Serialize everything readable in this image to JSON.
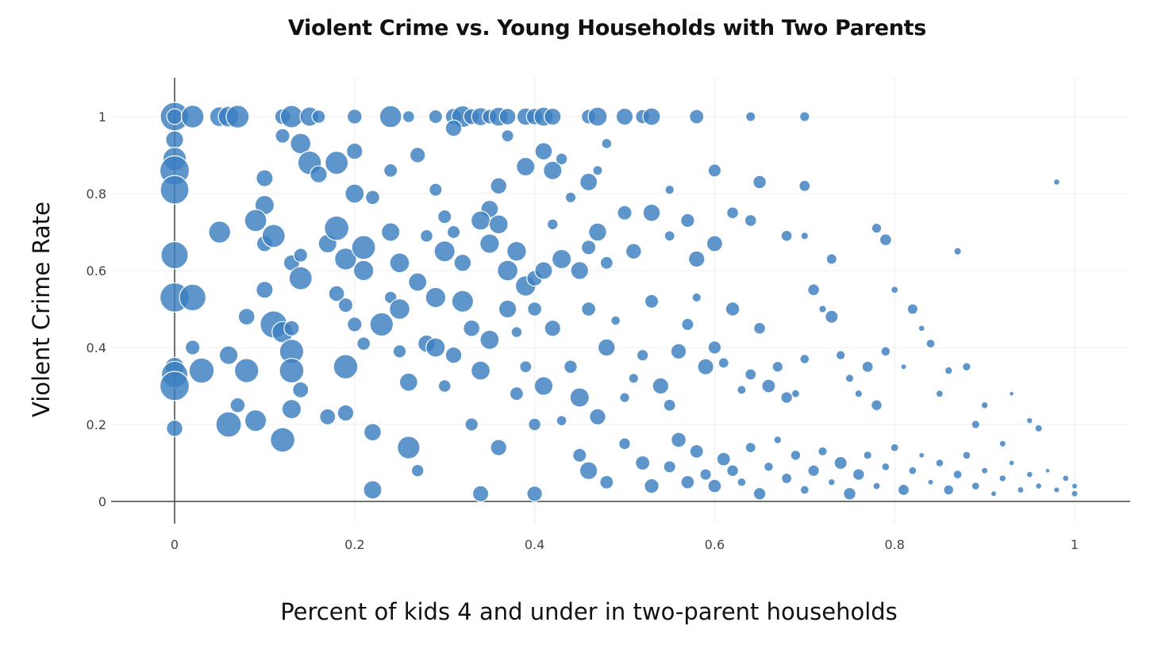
{
  "chart_data": {
    "type": "scatter",
    "title": "Violent Crime vs. Young Households with Two Parents",
    "xlabel": "Percent of kids 4 and under in two-parent households",
    "ylabel": "Violent Crime Rate",
    "xlim": [
      -0.08,
      1.06
    ],
    "ylim": [
      -0.06,
      1.1
    ],
    "xticks": [
      "0",
      "0.2",
      "0.4",
      "0.6",
      "0.8",
      "1"
    ],
    "yticks": [
      "0",
      "0.2",
      "0.4",
      "0.6",
      "0.8",
      "1"
    ],
    "grid": true,
    "legend": "none",
    "marker_color": "#3a7fc1",
    "marker_edge_color": "#ffffff",
    "size_encoding": "bubble size varies by point (larger toward lower x)",
    "series": [
      {
        "points": [
          [
            0,
            1
          ],
          [
            0,
            1
          ],
          [
            0.02,
            1
          ],
          [
            0.05,
            1
          ],
          [
            0.06,
            1
          ],
          [
            0.07,
            1
          ],
          [
            0.12,
            1
          ],
          [
            0.13,
            1
          ],
          [
            0.15,
            1
          ],
          [
            0.16,
            1
          ],
          [
            0.2,
            1
          ],
          [
            0.24,
            1
          ],
          [
            0.26,
            1
          ],
          [
            0.29,
            1
          ],
          [
            0.31,
            1
          ],
          [
            0.32,
            1
          ],
          [
            0.33,
            1
          ],
          [
            0.34,
            1
          ],
          [
            0.35,
            1
          ],
          [
            0.36,
            1
          ],
          [
            0.37,
            1
          ],
          [
            0.39,
            1
          ],
          [
            0.4,
            1
          ],
          [
            0.41,
            1
          ],
          [
            0.42,
            1
          ],
          [
            0.46,
            1
          ],
          [
            0.47,
            1
          ],
          [
            0.5,
            1
          ],
          [
            0.52,
            1
          ],
          [
            0.53,
            1
          ],
          [
            0.58,
            1
          ],
          [
            0.64,
            1
          ],
          [
            0.7,
            1
          ],
          [
            0,
            0.94
          ],
          [
            0,
            0.89
          ],
          [
            0,
            0.86
          ],
          [
            0,
            0.81
          ],
          [
            0.05,
            0.7
          ],
          [
            0.1,
            0.84
          ],
          [
            0.1,
            0.77
          ],
          [
            0.12,
            0.95
          ],
          [
            0.14,
            0.93
          ],
          [
            0.15,
            0.88
          ],
          [
            0.16,
            0.85
          ],
          [
            0.18,
            0.88
          ],
          [
            0.2,
            0.91
          ],
          [
            0.2,
            0.8
          ],
          [
            0.22,
            0.79
          ],
          [
            0.24,
            0.86
          ],
          [
            0.27,
            0.9
          ],
          [
            0.29,
            0.81
          ],
          [
            0.3,
            0.74
          ],
          [
            0.31,
            0.97
          ],
          [
            0.35,
            0.76
          ],
          [
            0.37,
            0.95
          ],
          [
            0.36,
            0.82
          ],
          [
            0.39,
            0.87
          ],
          [
            0.41,
            0.91
          ],
          [
            0.42,
            0.86
          ],
          [
            0.43,
            0.89
          ],
          [
            0.44,
            0.79
          ],
          [
            0.46,
            0.83
          ],
          [
            0.47,
            0.86
          ],
          [
            0.48,
            0.93
          ],
          [
            0.55,
            0.81
          ],
          [
            0.6,
            0.86
          ],
          [
            0.65,
            0.83
          ],
          [
            0.7,
            0.82
          ],
          [
            0.98,
            0.83
          ],
          [
            0.78,
            0.71
          ],
          [
            0.87,
            0.65
          ],
          [
            0,
            0.64
          ],
          [
            0,
            0.53
          ],
          [
            0.02,
            0.53
          ],
          [
            0.09,
            0.73
          ],
          [
            0.1,
            0.67
          ],
          [
            0.11,
            0.69
          ],
          [
            0.13,
            0.62
          ],
          [
            0.14,
            0.64
          ],
          [
            0.14,
            0.58
          ],
          [
            0.17,
            0.67
          ],
          [
            0.18,
            0.71
          ],
          [
            0.19,
            0.63
          ],
          [
            0.21,
            0.66
          ],
          [
            0.21,
            0.6
          ],
          [
            0.24,
            0.7
          ],
          [
            0.25,
            0.62
          ],
          [
            0.27,
            0.57
          ],
          [
            0.28,
            0.69
          ],
          [
            0.3,
            0.65
          ],
          [
            0.31,
            0.7
          ],
          [
            0.32,
            0.62
          ],
          [
            0.34,
            0.73
          ],
          [
            0.35,
            0.67
          ],
          [
            0.36,
            0.72
          ],
          [
            0.37,
            0.6
          ],
          [
            0.38,
            0.65
          ],
          [
            0.39,
            0.56
          ],
          [
            0.4,
            0.58
          ],
          [
            0.41,
            0.6
          ],
          [
            0.42,
            0.72
          ],
          [
            0.43,
            0.63
          ],
          [
            0.45,
            0.6
          ],
          [
            0.46,
            0.66
          ],
          [
            0.47,
            0.7
          ],
          [
            0.48,
            0.62
          ],
          [
            0.5,
            0.75
          ],
          [
            0.51,
            0.65
          ],
          [
            0.53,
            0.75
          ],
          [
            0.55,
            0.69
          ],
          [
            0.57,
            0.73
          ],
          [
            0.58,
            0.63
          ],
          [
            0.6,
            0.67
          ],
          [
            0.62,
            0.75
          ],
          [
            0.64,
            0.73
          ],
          [
            0.68,
            0.69
          ],
          [
            0.7,
            0.69
          ],
          [
            0.73,
            0.63
          ],
          [
            0.79,
            0.68
          ],
          [
            0,
            0.35
          ],
          [
            0,
            0.33
          ],
          [
            0,
            0.3
          ],
          [
            0,
            0.19
          ],
          [
            0.02,
            0.4
          ],
          [
            0.03,
            0.34
          ],
          [
            0.06,
            0.38
          ],
          [
            0.06,
            0.2
          ],
          [
            0.07,
            0.25
          ],
          [
            0.08,
            0.34
          ],
          [
            0.09,
            0.21
          ],
          [
            0.08,
            0.48
          ],
          [
            0.1,
            0.55
          ],
          [
            0.11,
            0.46
          ],
          [
            0.12,
            0.44
          ],
          [
            0.12,
            0.16
          ],
          [
            0.13,
            0.45
          ],
          [
            0.13,
            0.39
          ],
          [
            0.13,
            0.34
          ],
          [
            0.14,
            0.29
          ],
          [
            0.13,
            0.24
          ],
          [
            0.17,
            0.22
          ],
          [
            0.18,
            0.54
          ],
          [
            0.19,
            0.51
          ],
          [
            0.19,
            0.35
          ],
          [
            0.19,
            0.23
          ],
          [
            0.2,
            0.46
          ],
          [
            0.21,
            0.41
          ],
          [
            0.22,
            0.18
          ],
          [
            0.22,
            0.03
          ],
          [
            0.23,
            0.46
          ],
          [
            0.24,
            0.53
          ],
          [
            0.25,
            0.39
          ],
          [
            0.25,
            0.5
          ],
          [
            0.26,
            0.31
          ],
          [
            0.26,
            0.14
          ],
          [
            0.27,
            0.08
          ],
          [
            0.28,
            0.41
          ],
          [
            0.29,
            0.53
          ],
          [
            0.29,
            0.4
          ],
          [
            0.3,
            0.3
          ],
          [
            0.31,
            0.38
          ],
          [
            0.32,
            0.52
          ],
          [
            0.33,
            0.45
          ],
          [
            0.33,
            0.2
          ],
          [
            0.34,
            0.02
          ],
          [
            0.34,
            0.34
          ],
          [
            0.35,
            0.42
          ],
          [
            0.36,
            0.14
          ],
          [
            0.37,
            0.5
          ],
          [
            0.38,
            0.44
          ],
          [
            0.38,
            0.28
          ],
          [
            0.39,
            0.35
          ],
          [
            0.4,
            0.2
          ],
          [
            0.4,
            0.02
          ],
          [
            0.4,
            0.5
          ],
          [
            0.41,
            0.3
          ],
          [
            0.42,
            0.45
          ],
          [
            0.43,
            0.21
          ],
          [
            0.44,
            0.35
          ],
          [
            0.45,
            0.27
          ],
          [
            0.46,
            0.5
          ],
          [
            0.47,
            0.22
          ],
          [
            0.48,
            0.4
          ],
          [
            0.49,
            0.47
          ],
          [
            0.5,
            0.27
          ],
          [
            0.51,
            0.32
          ],
          [
            0.52,
            0.38
          ],
          [
            0.53,
            0.52
          ],
          [
            0.54,
            0.3
          ],
          [
            0.55,
            0.25
          ],
          [
            0.56,
            0.39
          ],
          [
            0.57,
            0.46
          ],
          [
            0.58,
            0.53
          ],
          [
            0.59,
            0.35
          ],
          [
            0.6,
            0.4
          ],
          [
            0.61,
            0.36
          ],
          [
            0.62,
            0.5
          ],
          [
            0.63,
            0.29
          ],
          [
            0.64,
            0.33
          ],
          [
            0.65,
            0.45
          ],
          [
            0.66,
            0.3
          ],
          [
            0.67,
            0.35
          ],
          [
            0.68,
            0.27
          ],
          [
            0.69,
            0.28
          ],
          [
            0.7,
            0.37
          ],
          [
            0.71,
            0.55
          ],
          [
            0.72,
            0.5
          ],
          [
            0.73,
            0.48
          ],
          [
            0.74,
            0.38
          ],
          [
            0.75,
            0.32
          ],
          [
            0.76,
            0.28
          ],
          [
            0.77,
            0.35
          ],
          [
            0.78,
            0.25
          ],
          [
            0.79,
            0.39
          ],
          [
            0.8,
            0.55
          ],
          [
            0.81,
            0.35
          ],
          [
            0.82,
            0.5
          ],
          [
            0.83,
            0.45
          ],
          [
            0.84,
            0.41
          ],
          [
            0.85,
            0.28
          ],
          [
            0.86,
            0.34
          ],
          [
            0.88,
            0.35
          ],
          [
            0.89,
            0.2
          ],
          [
            0.9,
            0.25
          ],
          [
            0.92,
            0.15
          ],
          [
            0.93,
            0.28
          ],
          [
            0.95,
            0.21
          ],
          [
            0.96,
            0.19
          ],
          [
            0.45,
            0.12
          ],
          [
            0.46,
            0.08
          ],
          [
            0.48,
            0.05
          ],
          [
            0.5,
            0.15
          ],
          [
            0.52,
            0.1
          ],
          [
            0.53,
            0.04
          ],
          [
            0.55,
            0.09
          ],
          [
            0.56,
            0.16
          ],
          [
            0.57,
            0.05
          ],
          [
            0.58,
            0.13
          ],
          [
            0.59,
            0.07
          ],
          [
            0.6,
            0.04
          ],
          [
            0.61,
            0.11
          ],
          [
            0.62,
            0.08
          ],
          [
            0.63,
            0.05
          ],
          [
            0.64,
            0.14
          ],
          [
            0.65,
            0.02
          ],
          [
            0.66,
            0.09
          ],
          [
            0.67,
            0.16
          ],
          [
            0.68,
            0.06
          ],
          [
            0.69,
            0.12
          ],
          [
            0.7,
            0.03
          ],
          [
            0.71,
            0.08
          ],
          [
            0.72,
            0.13
          ],
          [
            0.73,
            0.05
          ],
          [
            0.74,
            0.1
          ],
          [
            0.75,
            0.02
          ],
          [
            0.76,
            0.07
          ],
          [
            0.77,
            0.12
          ],
          [
            0.78,
            0.04
          ],
          [
            0.79,
            0.09
          ],
          [
            0.8,
            0.14
          ],
          [
            0.81,
            0.03
          ],
          [
            0.82,
            0.08
          ],
          [
            0.83,
            0.12
          ],
          [
            0.84,
            0.05
          ],
          [
            0.85,
            0.1
          ],
          [
            0.86,
            0.03
          ],
          [
            0.87,
            0.07
          ],
          [
            0.88,
            0.12
          ],
          [
            0.89,
            0.04
          ],
          [
            0.9,
            0.08
          ],
          [
            0.91,
            0.02
          ],
          [
            0.92,
            0.06
          ],
          [
            0.93,
            0.1
          ],
          [
            0.94,
            0.03
          ],
          [
            0.95,
            0.07
          ],
          [
            0.96,
            0.04
          ],
          [
            0.97,
            0.08
          ],
          [
            0.98,
            0.03
          ],
          [
            0.99,
            0.06
          ],
          [
            1,
            0.04
          ],
          [
            1,
            0.02
          ]
        ]
      }
    ]
  }
}
